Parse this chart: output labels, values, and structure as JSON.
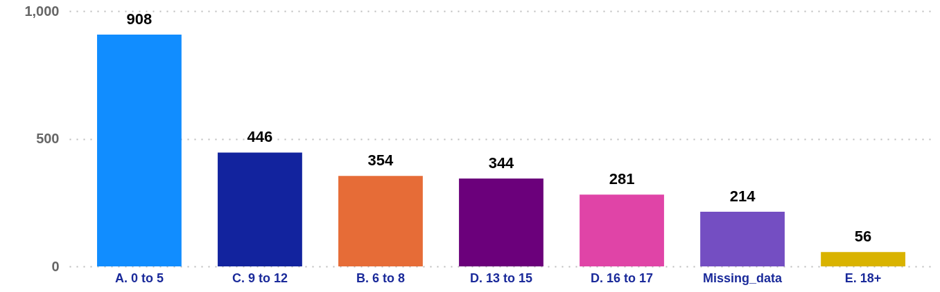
{
  "chart_data": {
    "type": "bar",
    "categories": [
      "A. 0 to 5",
      "C. 9 to 12",
      "B. 6 to 8",
      "D. 13 to 15",
      "D. 16 to 17",
      "Missing_data",
      "E. 18+"
    ],
    "values": [
      908,
      446,
      354,
      344,
      281,
      214,
      56
    ],
    "colors": [
      "#118dff",
      "#12239e",
      "#e66c37",
      "#6b007b",
      "#e044a7",
      "#744ec2",
      "#d9b300"
    ],
    "ylim": [
      0,
      1000
    ],
    "yticks": [
      0,
      {
        "value": 500,
        "label": "500"
      },
      {
        "value": 1000,
        "label": "1,000"
      }
    ],
    "grid": "y",
    "data_labels": true
  }
}
